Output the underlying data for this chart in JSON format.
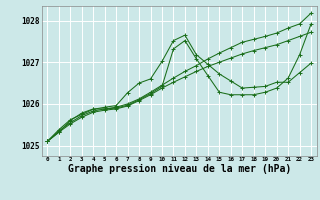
{
  "xlabel": "Graphe pression niveau de la mer (hPa)",
  "bg_color": "#cce8e8",
  "grid_color": "#ffffff",
  "line_color": "#1a6e1a",
  "x_values": [
    0,
    1,
    2,
    3,
    4,
    5,
    6,
    7,
    8,
    9,
    10,
    11,
    12,
    13,
    14,
    15,
    16,
    17,
    18,
    19,
    20,
    21,
    22,
    23
  ],
  "line1": [
    1025.1,
    1025.35,
    1025.55,
    1025.72,
    1025.83,
    1025.88,
    1025.92,
    1026.0,
    1026.12,
    1026.28,
    1026.45,
    1026.62,
    1026.78,
    1026.92,
    1027.08,
    1027.22,
    1027.35,
    1027.48,
    1027.55,
    1027.62,
    1027.7,
    1027.82,
    1027.92,
    1028.18
  ],
  "line2": [
    1025.1,
    1025.32,
    1025.52,
    1025.68,
    1025.8,
    1025.85,
    1025.88,
    1025.95,
    1026.08,
    1026.22,
    1026.38,
    1026.52,
    1026.65,
    1026.78,
    1026.9,
    1027.0,
    1027.1,
    1027.2,
    1027.28,
    1027.35,
    1027.42,
    1027.52,
    1027.62,
    1027.72
  ],
  "line3": [
    1025.1,
    1025.38,
    1025.62,
    1025.75,
    1025.87,
    1025.92,
    1025.96,
    1026.27,
    1026.5,
    1026.6,
    1027.02,
    1027.52,
    1027.65,
    1027.18,
    1026.95,
    1026.72,
    1026.55,
    1026.38,
    1026.4,
    1026.42,
    1026.52,
    1026.52,
    1026.75,
    1026.98
  ],
  "line4": [
    1025.1,
    1025.32,
    1025.6,
    1025.78,
    1025.88,
    1025.88,
    1025.9,
    1025.97,
    1026.1,
    1026.25,
    1026.42,
    1027.32,
    1027.52,
    1027.08,
    1026.68,
    1026.28,
    1026.22,
    1026.22,
    1026.22,
    1026.28,
    1026.38,
    1026.62,
    1027.18,
    1027.92
  ],
  "ylim_min": 1024.75,
  "ylim_max": 1028.35,
  "yticks": [
    1025,
    1026,
    1027,
    1028
  ],
  "xtick_fontsize": 4.2,
  "ytick_fontsize": 5.5,
  "xlabel_fontsize": 7.0
}
